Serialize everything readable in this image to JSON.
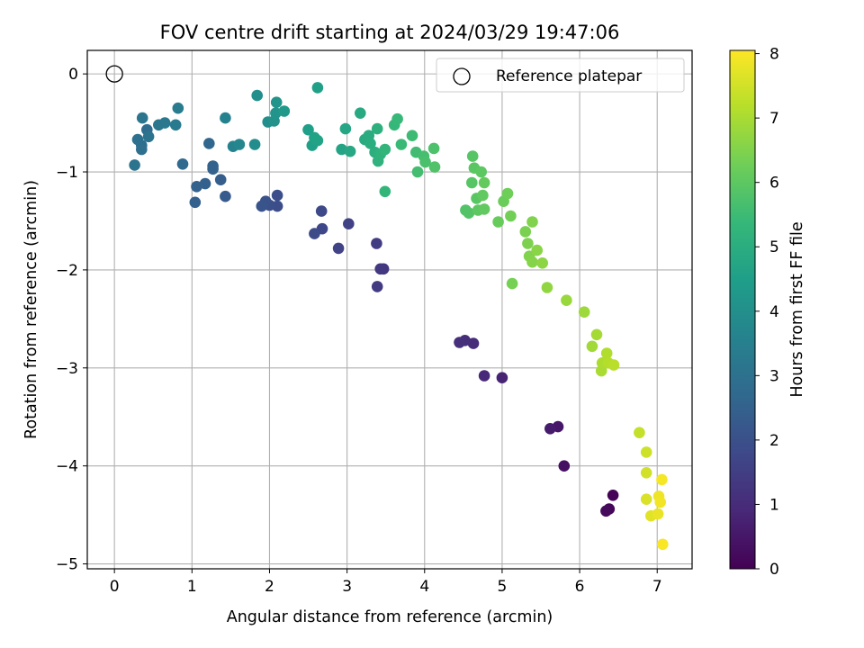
{
  "chart_data": {
    "type": "scatter",
    "title": "FOV centre drift starting at 2024/03/29 19:47:06",
    "xlabel": "Angular distance from reference (arcmin)",
    "ylabel": "Rotation from reference (arcmin)",
    "xlim": [
      -0.35,
      7.45
    ],
    "ylim": [
      -5.05,
      0.24
    ],
    "x_ticks": [
      "0",
      "1",
      "2",
      "3",
      "4",
      "5",
      "6",
      "7"
    ],
    "y_ticks": [
      "0",
      "−1",
      "−2",
      "−3",
      "−4",
      "−5"
    ],
    "grid": true,
    "legend": {
      "placement": "top-right",
      "entries": [
        "Reference platepar"
      ]
    },
    "reference_point": {
      "x": 0,
      "y": 0,
      "label": "Reference platepar"
    },
    "colorbar": {
      "label": "Hours from first FF file",
      "range": [
        0,
        8.05
      ],
      "ticks": [
        "0",
        "1",
        "2",
        "3",
        "4",
        "5",
        "6",
        "7",
        "8"
      ],
      "colormap": "viridis",
      "colors": [
        "#440154",
        "#482878",
        "#3e4989",
        "#31688e",
        "#26828e",
        "#1f9e89",
        "#35b779",
        "#6ece58",
        "#b5de2b",
        "#fde725"
      ]
    },
    "series": [
      {
        "points": [
          [
            6.43,
            -4.3,
            0.05
          ],
          [
            6.38,
            -4.44,
            0.12
          ],
          [
            6.34,
            -4.46,
            0.2
          ],
          [
            5.8,
            -4.0,
            0.35
          ],
          [
            5.72,
            -3.6,
            0.5
          ],
          [
            5.62,
            -3.62,
            0.6
          ],
          [
            5.0,
            -3.1,
            0.8
          ],
          [
            4.77,
            -3.08,
            0.9
          ],
          [
            4.63,
            -2.75,
            1.0
          ],
          [
            4.52,
            -2.72,
            1.05
          ],
          [
            4.45,
            -2.74,
            1.1
          ],
          [
            3.47,
            -1.99,
            1.3
          ],
          [
            3.43,
            -1.99,
            1.35
          ],
          [
            3.39,
            -2.17,
            1.4
          ],
          [
            3.38,
            -1.73,
            1.45
          ],
          [
            3.02,
            -1.53,
            1.6
          ],
          [
            2.89,
            -1.78,
            1.65
          ],
          [
            2.68,
            -1.58,
            1.75
          ],
          [
            2.67,
            -1.4,
            1.8
          ],
          [
            2.58,
            -1.63,
            1.85
          ],
          [
            2.1,
            -1.35,
            1.9
          ],
          [
            2.1,
            -1.24,
            1.95
          ],
          [
            2.0,
            -1.34,
            2.0
          ],
          [
            1.95,
            -1.3,
            2.05
          ],
          [
            1.9,
            -1.35,
            2.1
          ],
          [
            1.43,
            -1.25,
            2.3
          ],
          [
            1.37,
            -1.08,
            2.4
          ],
          [
            1.27,
            -0.97,
            2.5
          ],
          [
            1.27,
            -0.94,
            2.55
          ],
          [
            1.17,
            -1.12,
            2.45
          ],
          [
            1.06,
            -1.15,
            2.5
          ],
          [
            1.04,
            -1.31,
            2.45
          ],
          [
            1.22,
            -0.71,
            2.65
          ],
          [
            0.88,
            -0.92,
            2.75
          ],
          [
            0.42,
            -0.57,
            2.85
          ],
          [
            0.35,
            -0.73,
            2.9
          ],
          [
            0.35,
            -0.77,
            2.95
          ],
          [
            0.3,
            -0.67,
            3.0
          ],
          [
            0.26,
            -0.93,
            3.05
          ],
          [
            0.44,
            -0.64,
            3.1
          ],
          [
            0.36,
            -0.45,
            3.15
          ],
          [
            0.57,
            -0.52,
            3.2
          ],
          [
            0.65,
            -0.5,
            3.25
          ],
          [
            0.79,
            -0.52,
            3.3
          ],
          [
            0.82,
            -0.35,
            3.35
          ],
          [
            1.43,
            -0.45,
            3.55
          ],
          [
            1.53,
            -0.74,
            3.6
          ],
          [
            1.61,
            -0.72,
            3.7
          ],
          [
            1.81,
            -0.72,
            3.9
          ],
          [
            1.84,
            -0.22,
            3.95
          ],
          [
            1.98,
            -0.49,
            4.0
          ],
          [
            2.06,
            -0.48,
            4.1
          ],
          [
            2.08,
            -0.4,
            4.15
          ],
          [
            2.09,
            -0.29,
            4.2
          ],
          [
            2.19,
            -0.38,
            4.3
          ],
          [
            2.5,
            -0.57,
            4.5
          ],
          [
            2.55,
            -0.73,
            4.55
          ],
          [
            2.58,
            -0.65,
            4.6
          ],
          [
            2.62,
            -0.68,
            4.65
          ],
          [
            2.62,
            -0.14,
            4.55
          ],
          [
            2.93,
            -0.77,
            4.7
          ],
          [
            2.98,
            -0.56,
            4.75
          ],
          [
            3.04,
            -0.79,
            4.8
          ],
          [
            3.17,
            -0.4,
            4.85
          ],
          [
            3.23,
            -0.67,
            4.9
          ],
          [
            3.28,
            -0.63,
            4.95
          ],
          [
            3.3,
            -0.71,
            5.0
          ],
          [
            3.36,
            -0.8,
            5.05
          ],
          [
            3.39,
            -0.56,
            5.1
          ],
          [
            3.4,
            -0.89,
            5.15
          ],
          [
            3.43,
            -0.82,
            5.2
          ],
          [
            3.49,
            -0.77,
            5.25
          ],
          [
            3.49,
            -1.2,
            5.3
          ],
          [
            3.61,
            -0.52,
            5.35
          ],
          [
            3.65,
            -0.46,
            5.4
          ],
          [
            3.7,
            -0.72,
            5.45
          ],
          [
            3.84,
            -0.63,
            5.5
          ],
          [
            3.89,
            -0.8,
            5.55
          ],
          [
            3.91,
            -1.0,
            5.6
          ],
          [
            3.99,
            -0.84,
            5.65
          ],
          [
            4.01,
            -0.9,
            5.7
          ],
          [
            4.12,
            -0.76,
            5.75
          ],
          [
            4.13,
            -0.95,
            5.8
          ],
          [
            4.53,
            -1.39,
            5.85
          ],
          [
            4.57,
            -1.42,
            5.85
          ],
          [
            4.62,
            -0.84,
            5.9
          ],
          [
            4.61,
            -1.11,
            5.9
          ],
          [
            4.64,
            -0.96,
            5.95
          ],
          [
            4.67,
            -1.27,
            5.95
          ],
          [
            4.69,
            -1.39,
            6.0
          ],
          [
            4.73,
            -1.0,
            6.0
          ],
          [
            4.75,
            -1.24,
            6.05
          ],
          [
            4.77,
            -1.38,
            6.05
          ],
          [
            4.77,
            -1.11,
            6.1
          ],
          [
            4.95,
            -1.51,
            6.15
          ],
          [
            5.02,
            -1.3,
            6.2
          ],
          [
            5.07,
            -1.22,
            6.25
          ],
          [
            5.11,
            -1.45,
            6.3
          ],
          [
            5.13,
            -2.14,
            6.35
          ],
          [
            5.3,
            -1.61,
            6.4
          ],
          [
            5.33,
            -1.73,
            6.45
          ],
          [
            5.35,
            -1.86,
            6.5
          ],
          [
            5.39,
            -1.51,
            6.5
          ],
          [
            5.39,
            -1.92,
            6.55
          ],
          [
            5.45,
            -1.8,
            6.6
          ],
          [
            5.52,
            -1.93,
            6.65
          ],
          [
            5.58,
            -2.18,
            6.7
          ],
          [
            5.83,
            -2.31,
            6.8
          ],
          [
            6.06,
            -2.43,
            6.85
          ],
          [
            6.16,
            -2.78,
            6.9
          ],
          [
            6.22,
            -2.66,
            6.95
          ],
          [
            6.28,
            -3.03,
            7.0
          ],
          [
            6.29,
            -2.95,
            7.05
          ],
          [
            6.35,
            -2.85,
            7.1
          ],
          [
            6.37,
            -2.95,
            7.15
          ],
          [
            6.44,
            -2.97,
            7.2
          ],
          [
            6.77,
            -3.66,
            7.35
          ],
          [
            6.86,
            -3.86,
            7.45
          ],
          [
            6.86,
            -4.07,
            7.5
          ],
          [
            6.86,
            -4.34,
            7.6
          ],
          [
            6.92,
            -4.51,
            7.7
          ],
          [
            7.01,
            -4.49,
            7.8
          ],
          [
            7.02,
            -4.31,
            7.85
          ],
          [
            7.04,
            -4.37,
            7.9
          ],
          [
            7.06,
            -4.14,
            7.95
          ],
          [
            7.07,
            -4.8,
            8.0
          ]
        ]
      }
    ]
  }
}
